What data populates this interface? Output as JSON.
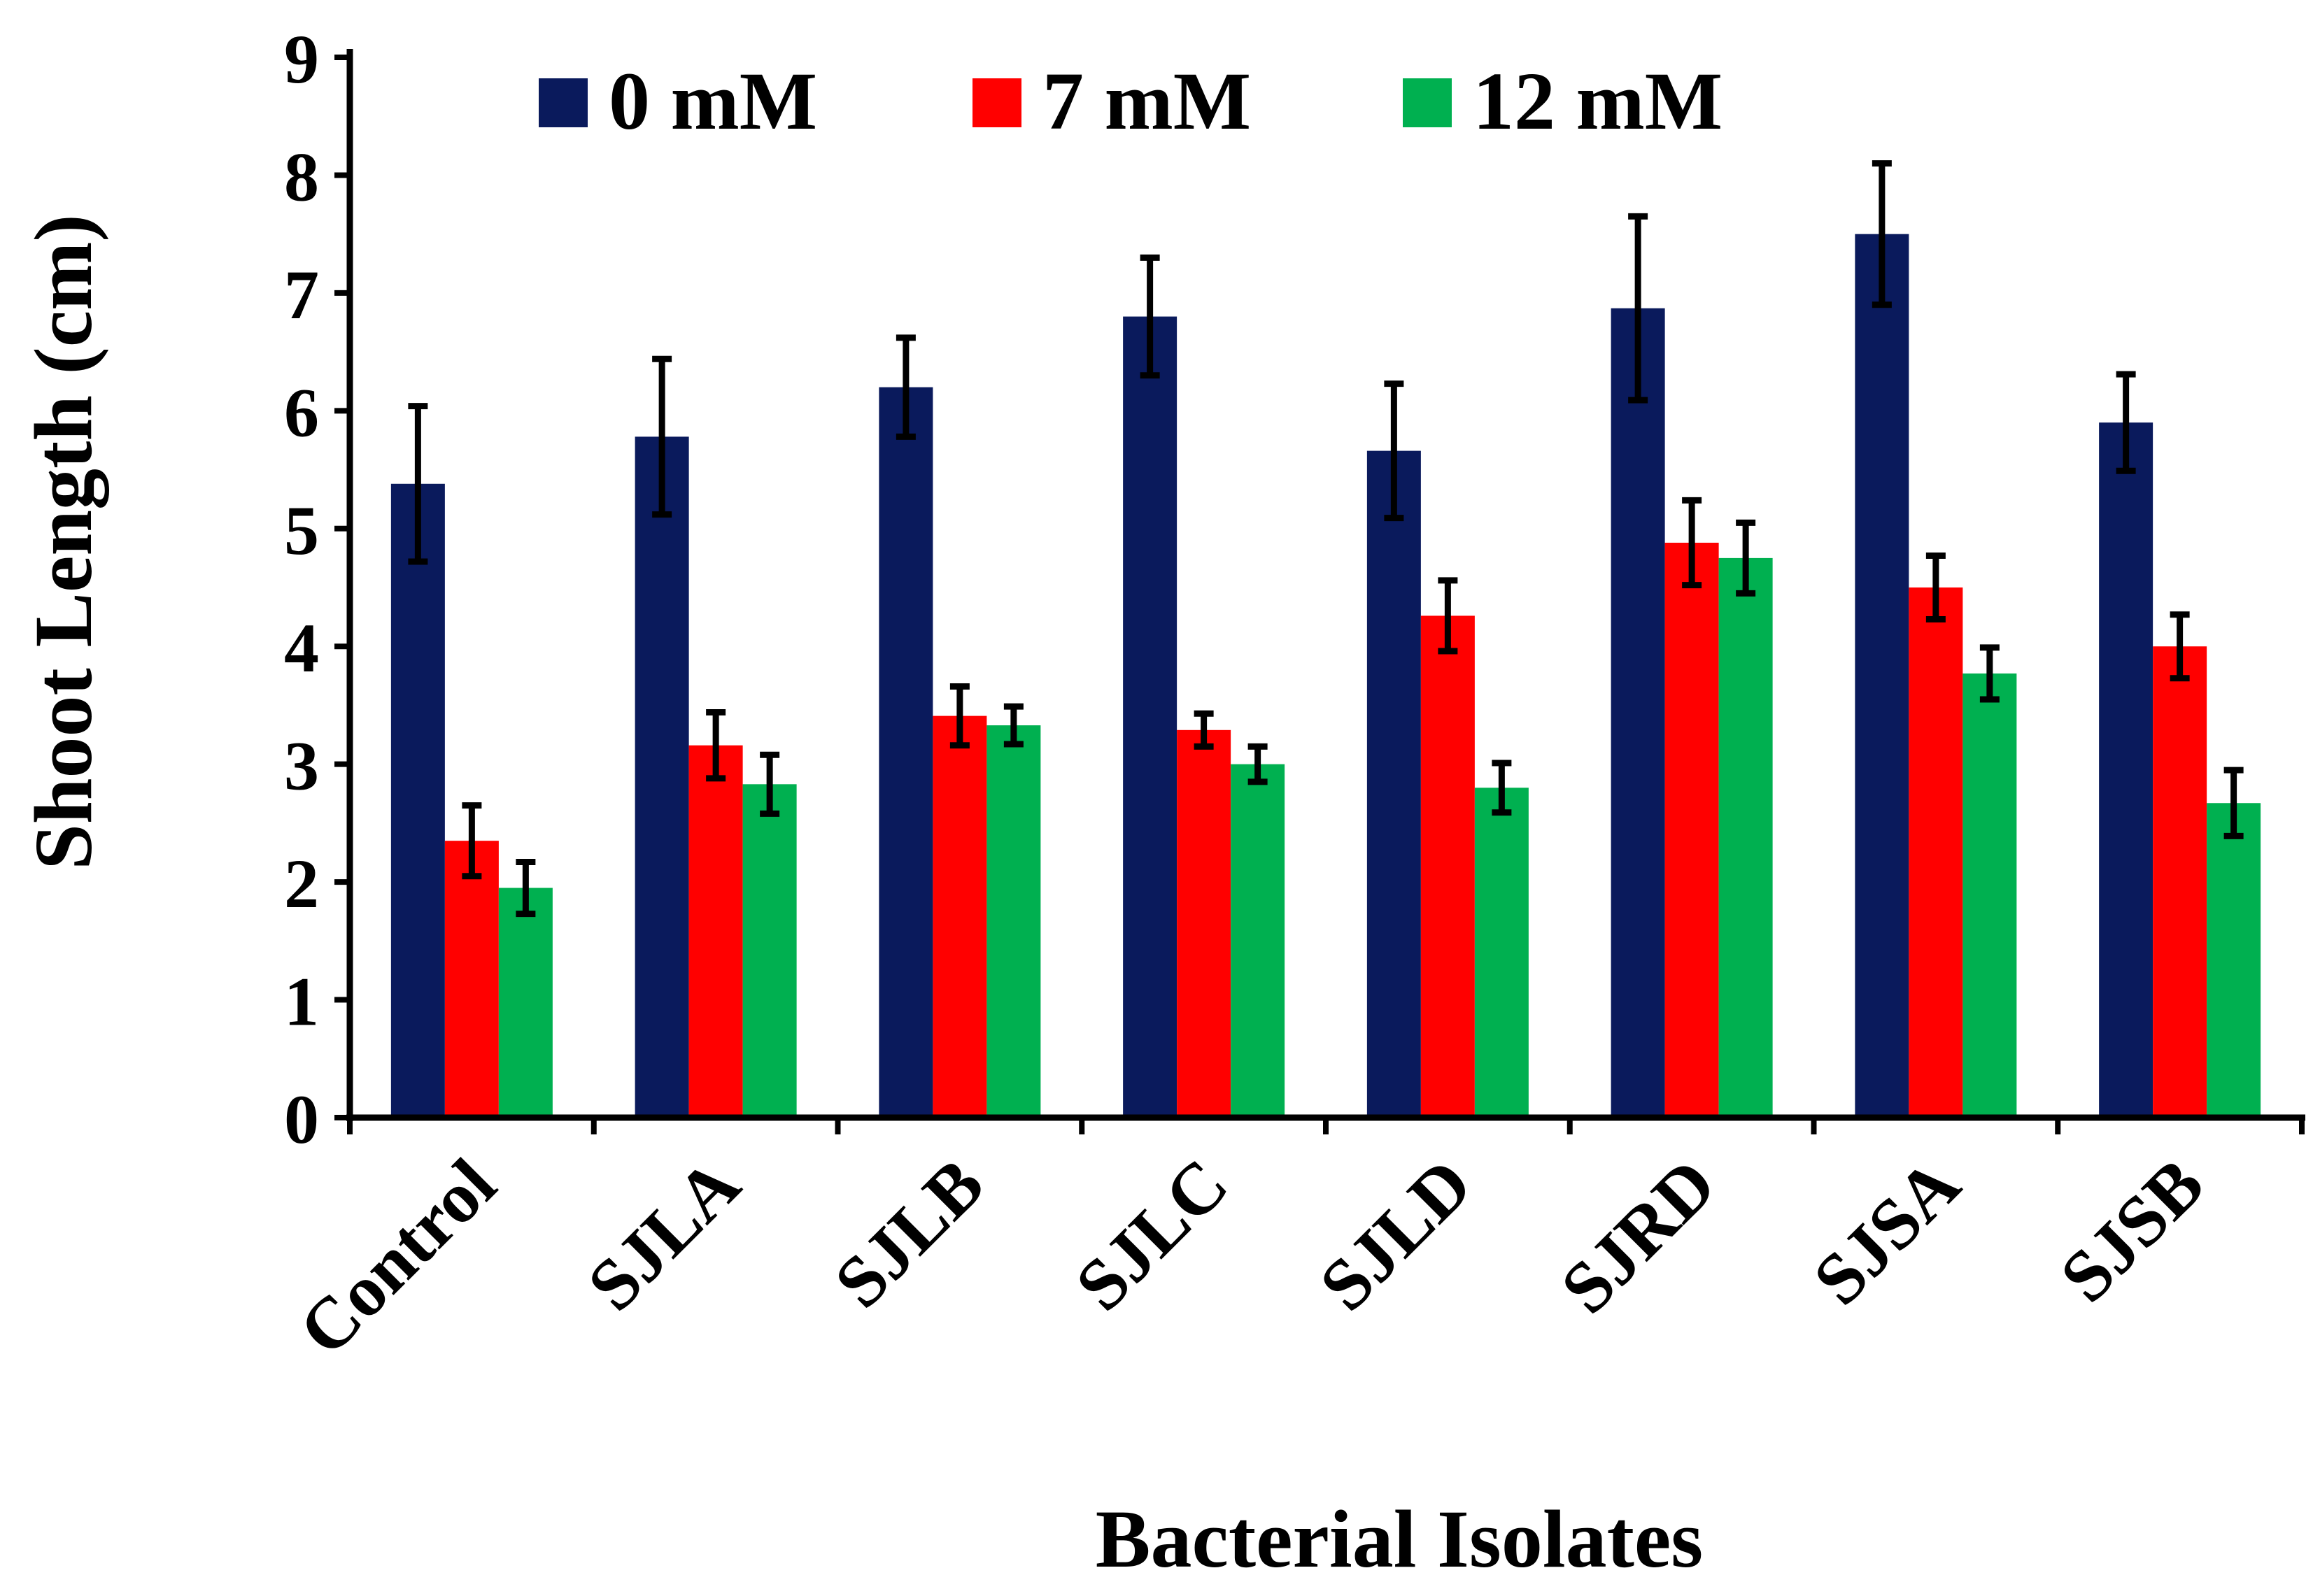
{
  "chart_data": {
    "type": "bar",
    "title": "",
    "xlabel": "Bacterial Isolates",
    "ylabel": "Shoot Length (cm)",
    "ylim": [
      0,
      9
    ],
    "yticks": [
      0,
      1,
      2,
      3,
      4,
      5,
      6,
      7,
      8,
      9
    ],
    "legend_position": "top",
    "categories": [
      "Control",
      "SJLA",
      "SJLB",
      "SJLC",
      "SJLD",
      "SJRD",
      "SJSA",
      "SJSB"
    ],
    "series": [
      {
        "name": "0 mM",
        "color": "#0A1A5C",
        "values": [
          5.38,
          5.78,
          6.2,
          6.8,
          5.66,
          6.87,
          7.5,
          5.9
        ],
        "errors": [
          0.66,
          0.66,
          0.42,
          0.5,
          0.57,
          0.78,
          0.6,
          0.41
        ]
      },
      {
        "name": "7 mM",
        "color": "#FF0000",
        "values": [
          2.35,
          3.16,
          3.41,
          3.29,
          4.26,
          4.88,
          4.5,
          4.0
        ],
        "errors": [
          0.3,
          0.28,
          0.25,
          0.14,
          0.3,
          0.36,
          0.27,
          0.27
        ]
      },
      {
        "name": "12 mM",
        "color": "#00B050",
        "values": [
          1.95,
          2.83,
          3.33,
          3.0,
          2.8,
          4.75,
          3.77,
          2.67
        ],
        "errors": [
          0.22,
          0.25,
          0.16,
          0.15,
          0.21,
          0.3,
          0.22,
          0.28
        ]
      }
    ]
  }
}
